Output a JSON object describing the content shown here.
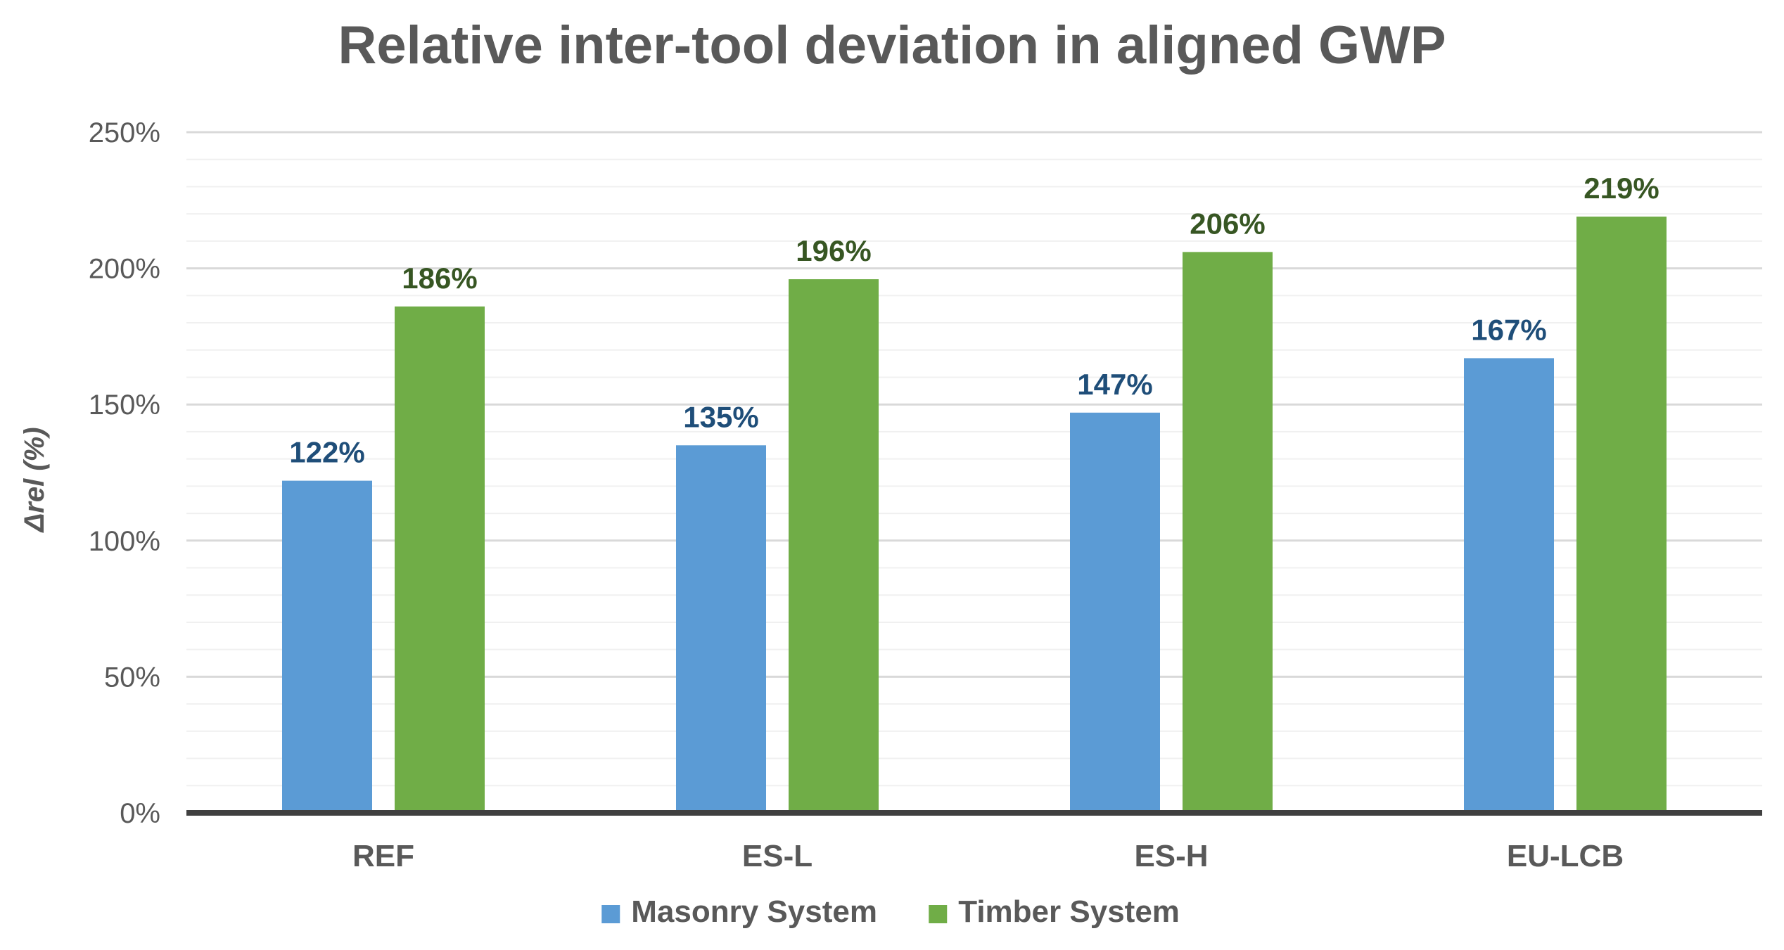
{
  "chart_data": {
    "type": "bar",
    "title": "Relative inter-tool deviation in aligned GWP",
    "ylabel": "Δrel (%)",
    "xlabel": "",
    "categories": [
      "REF",
      "ES-L",
      "ES-H",
      "EU-LCB"
    ],
    "series": [
      {
        "name": "Masonry System",
        "values": [
          122,
          135,
          147,
          167
        ],
        "labels": [
          "122%",
          "135%",
          "147%",
          "167%"
        ],
        "color": "#5b9bd5",
        "label_color": "#1f4e79"
      },
      {
        "name": "Timber System",
        "values": [
          186,
          196,
          206,
          219
        ],
        "labels": [
          "186%",
          "196%",
          "206%",
          "219%"
        ],
        "color": "#70ad47",
        "label_color": "#375623"
      }
    ],
    "ylim": [
      0,
      250
    ],
    "yticks": [
      0,
      50,
      100,
      150,
      200,
      250
    ],
    "ytick_labels": [
      "0%",
      "50%",
      "100%",
      "150%",
      "200%",
      "250%"
    ],
    "minor_grid_step": 10,
    "grid": true,
    "legend_position": "bottom",
    "colors": {
      "axis": "#404040",
      "major_grid": "#d9d9d9",
      "minor_grid": "#f0f0f0",
      "text": "#595959"
    }
  }
}
